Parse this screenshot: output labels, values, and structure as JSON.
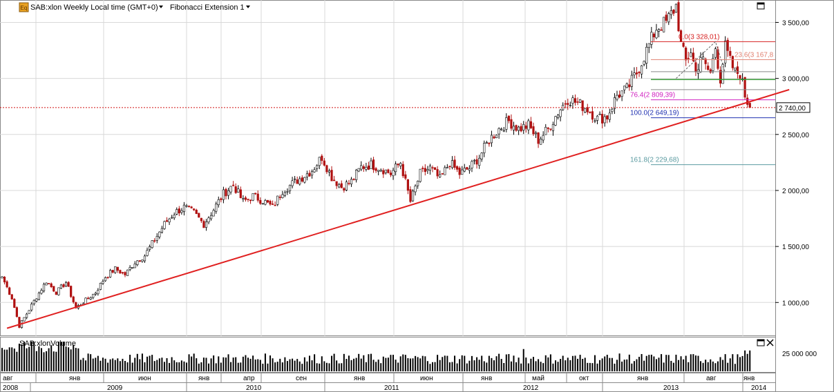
{
  "header": {
    "symbol_label": "SAB:xlon Weekly Local time (GMT+0)",
    "indicator_label": "Fibonacci Extension 1",
    "logo_text": "Eq"
  },
  "volume_pane": {
    "label": "SAB:xlonVolume",
    "axis_label": "25 000 000"
  },
  "price_axis": {
    "ticks": [
      {
        "value": 3500,
        "label": "3 500,00"
      },
      {
        "value": 3000,
        "label": "3 000,00"
      },
      {
        "value": 2500,
        "label": "2 500,00"
      },
      {
        "value": 2000,
        "label": "2 000,00"
      },
      {
        "value": 1500,
        "label": "1 500,00"
      },
      {
        "value": 1000,
        "label": "1 000,00"
      }
    ],
    "current_price": 2740,
    "current_label": "2 740,00"
  },
  "time_axis": {
    "months": [
      "авг",
      "янв",
      "июн",
      "янв",
      "апр",
      "сен",
      "янв",
      "июн",
      "янв",
      "май",
      "окт",
      "янв",
      "авг",
      "янв"
    ],
    "years": [
      "2008",
      "2009",
      "2010",
      "2011",
      "2012",
      "2013",
      "2014"
    ]
  },
  "fibonacci": [
    {
      "label": "0.0(3 328,01)",
      "value": 3328.01,
      "color": "#d62020"
    },
    {
      "label": "23.6(3 167,8",
      "value": 3167.8,
      "color": "#e08070"
    },
    {
      "label": "76.4(2 809,39)",
      "value": 2809.39,
      "color": "#d020c0"
    },
    {
      "label": "100.0(2 649,19)",
      "value": 2649.19,
      "color": "#1f30b0"
    },
    {
      "label": "161.8(2 229,68)",
      "value": 2229.68,
      "color": "#5a9aa0"
    }
  ],
  "colors": {
    "up": "#000000",
    "down": "#b01010",
    "trendline": "#e02020",
    "grid": "#d8d8d8",
    "volume": "#000000"
  },
  "chart_data": {
    "type": "candlestick",
    "ylim": [
      700,
      3700
    ],
    "start_date": "2008-08",
    "end_date": "2014-01",
    "close_anchors": [
      [
        0,
        1230
      ],
      [
        4,
        1040
      ],
      [
        7,
        790
      ],
      [
        10,
        900
      ],
      [
        14,
        1050
      ],
      [
        18,
        1190
      ],
      [
        22,
        1090
      ],
      [
        26,
        1180
      ],
      [
        30,
        950
      ],
      [
        34,
        1020
      ],
      [
        38,
        1090
      ],
      [
        42,
        1230
      ],
      [
        46,
        1300
      ],
      [
        50,
        1250
      ],
      [
        54,
        1360
      ],
      [
        58,
        1420
      ],
      [
        62,
        1560
      ],
      [
        66,
        1700
      ],
      [
        70,
        1800
      ],
      [
        74,
        1850
      ],
      [
        78,
        1800
      ],
      [
        82,
        1700
      ],
      [
        86,
        1830
      ],
      [
        90,
        1970
      ],
      [
        94,
        2050
      ],
      [
        98,
        1900
      ],
      [
        102,
        1950
      ],
      [
        106,
        1910
      ],
      [
        110,
        1850
      ],
      [
        114,
        2000
      ],
      [
        118,
        2060
      ],
      [
        122,
        2120
      ],
      [
        126,
        2180
      ],
      [
        130,
        2300
      ],
      [
        134,
        2120
      ],
      [
        138,
        2030
      ],
      [
        142,
        2080
      ],
      [
        146,
        2210
      ],
      [
        150,
        2230
      ],
      [
        154,
        2200
      ],
      [
        158,
        2150
      ],
      [
        162,
        2250
      ],
      [
        166,
        1900
      ],
      [
        170,
        2150
      ],
      [
        174,
        2200
      ],
      [
        178,
        2100
      ],
      [
        182,
        2250
      ],
      [
        186,
        2150
      ],
      [
        190,
        2200
      ],
      [
        194,
        2300
      ],
      [
        198,
        2450
      ],
      [
        202,
        2550
      ],
      [
        206,
        2620
      ],
      [
        210,
        2550
      ],
      [
        214,
        2580
      ],
      [
        218,
        2450
      ],
      [
        222,
        2550
      ],
      [
        226,
        2700
      ],
      [
        230,
        2820
      ],
      [
        234,
        2780
      ],
      [
        238,
        2730
      ],
      [
        242,
        2640
      ],
      [
        246,
        2660
      ],
      [
        250,
        2850
      ],
      [
        254,
        2900
      ],
      [
        258,
        3050
      ],
      [
        262,
        3250
      ],
      [
        266,
        3450
      ],
      [
        270,
        3500
      ],
      [
        274,
        3650
      ],
      [
        276,
        3300
      ],
      [
        278,
        3150
      ],
      [
        280,
        3250
      ],
      [
        282,
        3050
      ],
      [
        284,
        3200
      ],
      [
        286,
        3100
      ],
      [
        288,
        3050
      ],
      [
        290,
        3280
      ],
      [
        292,
        3000
      ],
      [
        294,
        3280
      ],
      [
        296,
        3150
      ],
      [
        298,
        3050
      ],
      [
        300,
        3050
      ],
      [
        302,
        2850
      ],
      [
        304,
        2740
      ]
    ],
    "trendline": {
      "from": {
        "week": 2,
        "price": 770
      },
      "to": {
        "week": 320,
        "price": 2900
      }
    }
  }
}
